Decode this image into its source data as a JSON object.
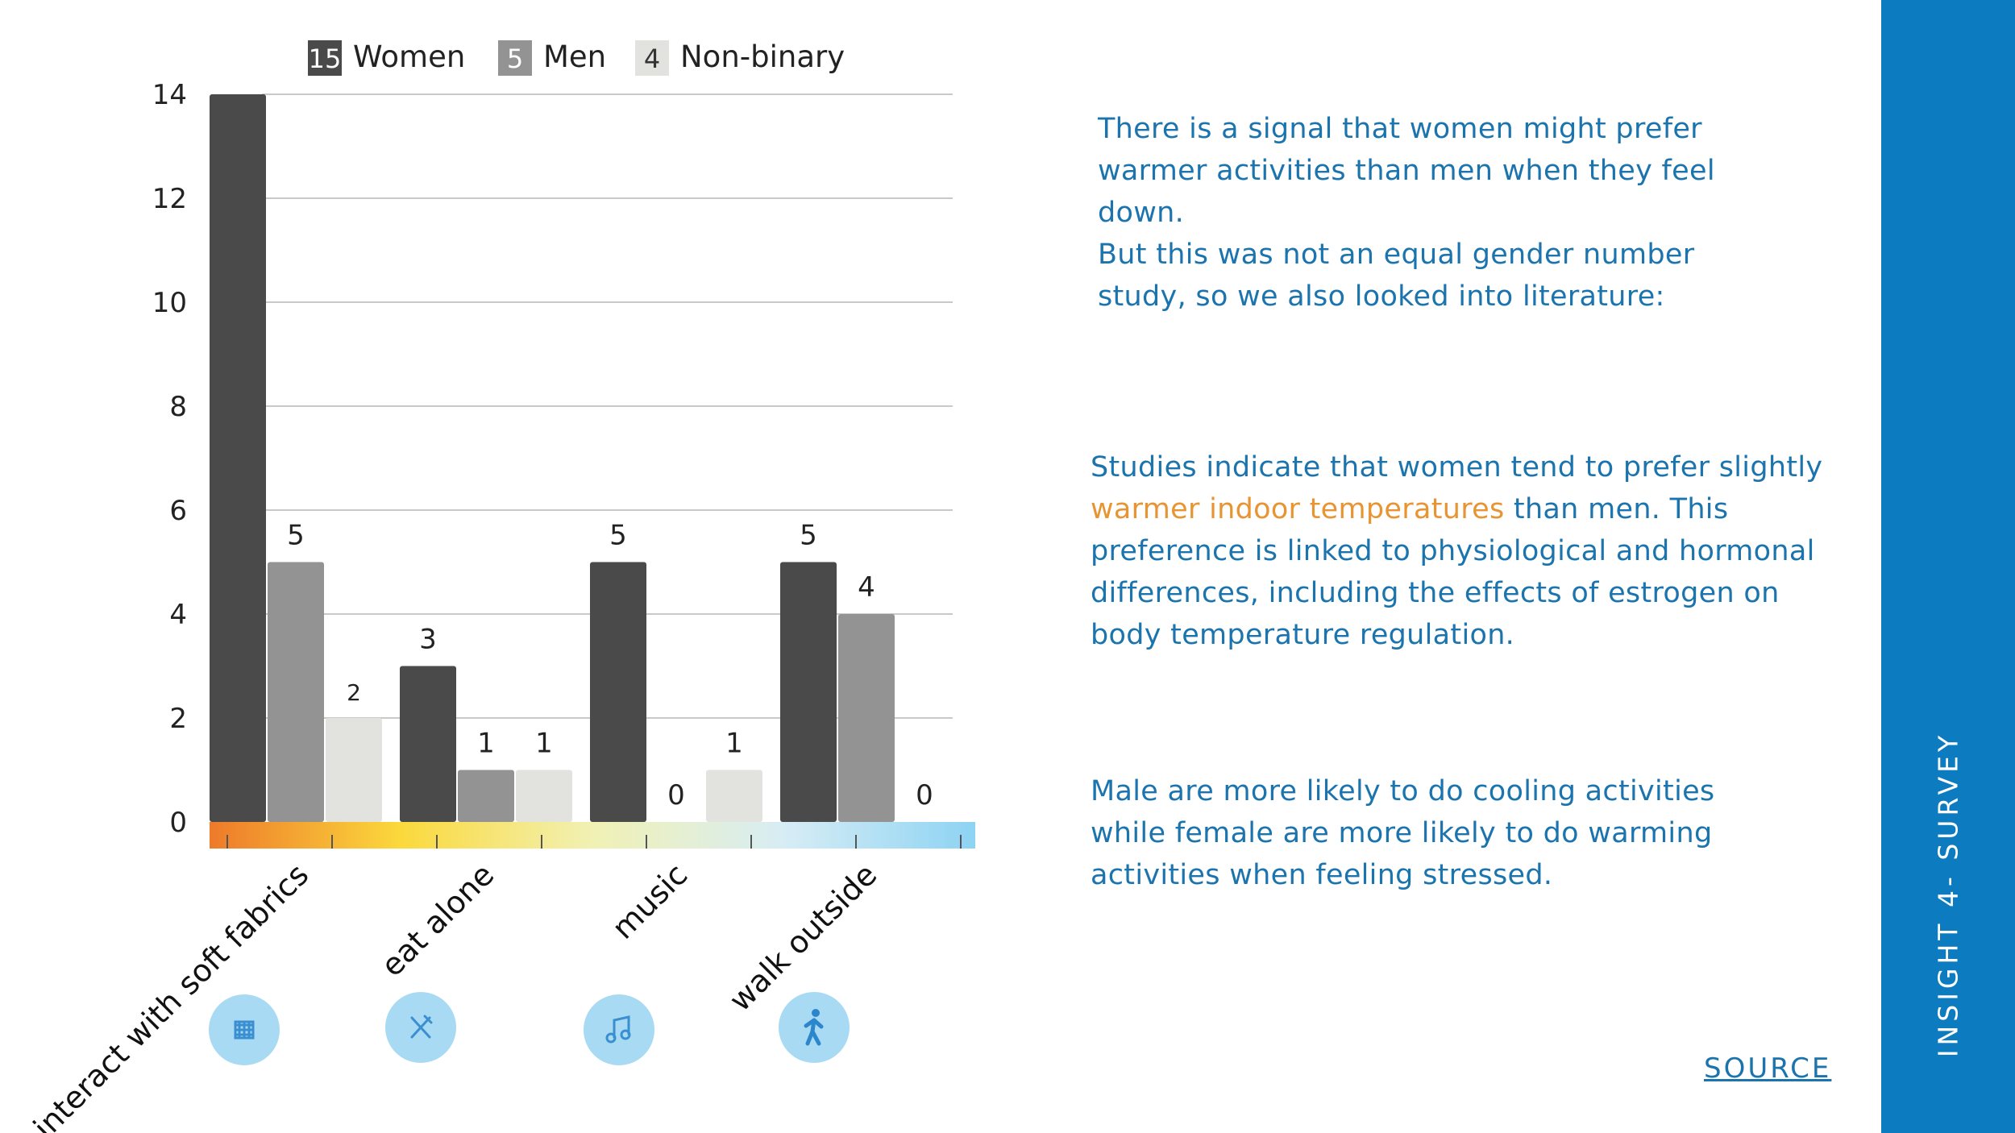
{
  "chart_data": {
    "type": "bar",
    "categories": [
      "interact with soft fabrics",
      "eat alone",
      "music",
      "walk outside"
    ],
    "series": [
      {
        "name": "Women",
        "count": "15",
        "color": "#4a4a4a",
        "values": [
          14,
          3,
          5,
          5
        ]
      },
      {
        "name": "Men",
        "count": "5",
        "color": "#939393",
        "values": [
          5,
          1,
          0,
          4
        ]
      },
      {
        "name": "Non-binary",
        "count": "4",
        "color": "#e2e3df",
        "values": [
          2,
          1,
          1,
          0
        ]
      }
    ],
    "data_labels": [
      [
        "",
        "3",
        "5",
        "5"
      ],
      [
        "5",
        "1",
        "0",
        "4"
      ],
      [
        "2",
        "1",
        "1",
        "0"
      ]
    ],
    "yticks": [
      0,
      2,
      4,
      6,
      8,
      10,
      12,
      14
    ],
    "ylim": [
      0,
      14
    ],
    "title": "",
    "xlabel": "",
    "ylabel": "",
    "grid": true,
    "legend": "top",
    "category_icons": [
      "fabric-icon",
      "utensils-icon",
      "music-icon",
      "walking-icon"
    ],
    "temperature_scale": [
      "#ee7a2a",
      "#fbd93c",
      "#f1f1b4",
      "#d7edf5",
      "#8dd3f3"
    ]
  },
  "notes": {
    "p1": "There is a signal that women might prefer warmer activities than men when they feel down.",
    "p1b": "But this was not an equal gender number study, so we also looked into literature:",
    "p2_start": "Studies indicate that women tend to prefer slightly ",
    "p2_highlight": "warmer indoor temperatures",
    "p2_end": " than men. This preference is linked to physiological and hormonal differences, including the effects of estrogen on body temperature regulation.",
    "p3": "Male are more likely to do cooling activities while female are more likely to do warming activities when feeling stressed."
  },
  "source_link": "SOURCE",
  "side_label": "INSIGHT 4- SURVEY",
  "colors": {
    "accent": "#1b74ad",
    "sidebar": "#0d7bbf",
    "highlight": "#e79431"
  }
}
